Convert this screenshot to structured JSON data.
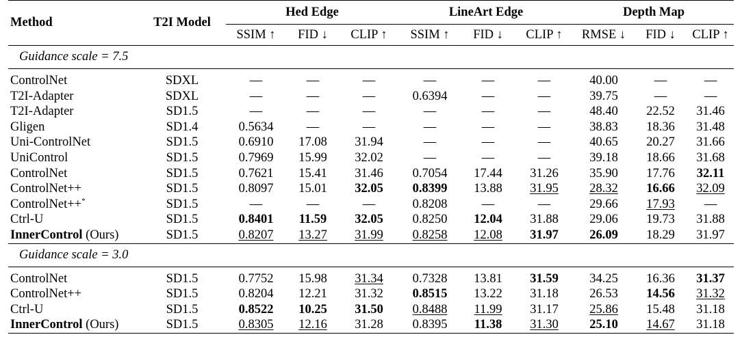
{
  "header": {
    "method": "Method",
    "t2i_model": "T2I Model",
    "groups": [
      "Hed Edge",
      "LineArt Edge",
      "Depth Map"
    ],
    "metrics": [
      "SSIM ↑",
      "FID ↓",
      "CLIP ↑",
      "SSIM ↑",
      "FID ↓",
      "CLIP ↑",
      "RMSE ↓",
      "FID ↓",
      "CLIP ↑"
    ]
  },
  "sections": [
    {
      "title": "Guidance scale = 7.5",
      "rows": [
        {
          "method": "ControlNet",
          "suffix": "",
          "model": "SDXL",
          "cells": [
            {
              "v": "—"
            },
            {
              "v": "—"
            },
            {
              "v": "—"
            },
            {
              "v": "—"
            },
            {
              "v": "—"
            },
            {
              "v": "—"
            },
            {
              "v": "40.00"
            },
            {
              "v": "—"
            },
            {
              "v": "—"
            }
          ]
        },
        {
          "method": "T2I-Adapter",
          "suffix": "",
          "model": "SDXL",
          "cells": [
            {
              "v": "—"
            },
            {
              "v": "—"
            },
            {
              "v": "—"
            },
            {
              "v": "0.6394"
            },
            {
              "v": "—"
            },
            {
              "v": "—"
            },
            {
              "v": "39.75"
            },
            {
              "v": "—"
            },
            {
              "v": "—"
            }
          ]
        },
        {
          "method": "T2I-Adapter",
          "suffix": "",
          "model": "SD1.5",
          "cells": [
            {
              "v": "—"
            },
            {
              "v": "—"
            },
            {
              "v": "—"
            },
            {
              "v": "—"
            },
            {
              "v": "—"
            },
            {
              "v": "—"
            },
            {
              "v": "48.40"
            },
            {
              "v": "22.52"
            },
            {
              "v": "31.46"
            }
          ]
        },
        {
          "method": "Gligen",
          "suffix": "",
          "model": "SD1.4",
          "cells": [
            {
              "v": "0.5634"
            },
            {
              "v": "—"
            },
            {
              "v": "—"
            },
            {
              "v": "—"
            },
            {
              "v": "—"
            },
            {
              "v": "—"
            },
            {
              "v": "38.83"
            },
            {
              "v": "18.36"
            },
            {
              "v": "31.48"
            }
          ]
        },
        {
          "method": "Uni-ControlNet",
          "suffix": "",
          "model": "SD1.5",
          "cells": [
            {
              "v": "0.6910"
            },
            {
              "v": "17.08"
            },
            {
              "v": "31.94"
            },
            {
              "v": "—"
            },
            {
              "v": "—"
            },
            {
              "v": "—"
            },
            {
              "v": "40.65"
            },
            {
              "v": "20.27"
            },
            {
              "v": "31.66"
            }
          ]
        },
        {
          "method": "UniControl",
          "suffix": "",
          "model": "SD1.5",
          "cells": [
            {
              "v": "0.7969"
            },
            {
              "v": "15.99"
            },
            {
              "v": "32.02"
            },
            {
              "v": "—"
            },
            {
              "v": "—"
            },
            {
              "v": "—"
            },
            {
              "v": "39.18"
            },
            {
              "v": "18.66"
            },
            {
              "v": "31.68"
            }
          ]
        },
        {
          "method": "ControlNet",
          "suffix": "",
          "model": "SD1.5",
          "cells": [
            {
              "v": "0.7621"
            },
            {
              "v": "15.41"
            },
            {
              "v": "31.46"
            },
            {
              "v": "0.7054"
            },
            {
              "v": "17.44"
            },
            {
              "v": "31.26"
            },
            {
              "v": "35.90"
            },
            {
              "v": "17.76"
            },
            {
              "v": "32.11",
              "s": "b"
            }
          ]
        },
        {
          "method": "ControlNet++",
          "suffix": "",
          "model": "SD1.5",
          "cells": [
            {
              "v": "0.8097"
            },
            {
              "v": "15.01"
            },
            {
              "v": "32.05",
              "s": "b"
            },
            {
              "v": "0.8399",
              "s": "b"
            },
            {
              "v": "13.88"
            },
            {
              "v": "31.95",
              "s": "u"
            },
            {
              "v": "28.32",
              "s": "u"
            },
            {
              "v": "16.66",
              "s": "b"
            },
            {
              "v": "32.09",
              "s": "u"
            }
          ]
        },
        {
          "method": "ControlNet++",
          "suffix": "*",
          "model": "SD1.5",
          "cells": [
            {
              "v": "—"
            },
            {
              "v": "—"
            },
            {
              "v": "—"
            },
            {
              "v": "0.8208"
            },
            {
              "v": "—"
            },
            {
              "v": "—"
            },
            {
              "v": "29.66"
            },
            {
              "v": "17.93",
              "s": "u"
            },
            {
              "v": "—"
            }
          ]
        },
        {
          "method": "Ctrl-U",
          "suffix": "",
          "model": "SD1.5",
          "cells": [
            {
              "v": "0.8401",
              "s": "b"
            },
            {
              "v": "11.59",
              "s": "b"
            },
            {
              "v": "32.05",
              "s": "b"
            },
            {
              "v": "0.8250"
            },
            {
              "v": "12.04",
              "s": "b"
            },
            {
              "v": "31.88"
            },
            {
              "v": "29.06"
            },
            {
              "v": "19.73"
            },
            {
              "v": "31.88"
            }
          ]
        },
        {
          "method": "InnerControl",
          "method_note": " (Ours)",
          "suffix": "",
          "model": "SD1.5",
          "bold_method": true,
          "cells": [
            {
              "v": "0.8207",
              "s": "u"
            },
            {
              "v": "13.27",
              "s": "u"
            },
            {
              "v": "31.99",
              "s": "u"
            },
            {
              "v": "0.8258",
              "s": "u"
            },
            {
              "v": "12.08",
              "s": "u"
            },
            {
              "v": "31.97",
              "s": "b"
            },
            {
              "v": "26.09",
              "s": "b"
            },
            {
              "v": "18.29"
            },
            {
              "v": "31.97"
            }
          ]
        }
      ]
    },
    {
      "title": "Guidance scale = 3.0",
      "rows": [
        {
          "method": "ControlNet",
          "suffix": "",
          "model": "SD1.5",
          "cells": [
            {
              "v": "0.7752"
            },
            {
              "v": "15.98"
            },
            {
              "v": "31.34",
              "s": "u"
            },
            {
              "v": "0.7328"
            },
            {
              "v": "13.81"
            },
            {
              "v": "31.59",
              "s": "b"
            },
            {
              "v": "34.25"
            },
            {
              "v": "16.36"
            },
            {
              "v": "31.37",
              "s": "b"
            }
          ]
        },
        {
          "method": "ControlNet++",
          "suffix": "",
          "model": "SD1.5",
          "cells": [
            {
              "v": "0.8204"
            },
            {
              "v": "12.21"
            },
            {
              "v": "31.32"
            },
            {
              "v": "0.8515",
              "s": "b"
            },
            {
              "v": "13.22"
            },
            {
              "v": "31.18"
            },
            {
              "v": "26.53"
            },
            {
              "v": "14.56",
              "s": "b"
            },
            {
              "v": "31.32",
              "s": "u"
            }
          ]
        },
        {
          "method": "Ctrl-U",
          "suffix": "",
          "model": "SD1.5",
          "cells": [
            {
              "v": "0.8522",
              "s": "b"
            },
            {
              "v": "10.25",
              "s": "b"
            },
            {
              "v": "31.50",
              "s": "b"
            },
            {
              "v": "0.8488",
              "s": "u"
            },
            {
              "v": "11.99",
              "s": "u"
            },
            {
              "v": "31.17"
            },
            {
              "v": "25.86",
              "s": "u"
            },
            {
              "v": "15.48"
            },
            {
              "v": "31.18"
            }
          ]
        },
        {
          "method": "InnerControl",
          "method_note": " (Ours)",
          "suffix": "",
          "model": "SD1.5",
          "bold_method": true,
          "cells": [
            {
              "v": "0.8305",
              "s": "u"
            },
            {
              "v": "12.16",
              "s": "u"
            },
            {
              "v": "31.28"
            },
            {
              "v": "0.8395"
            },
            {
              "v": "11.38",
              "s": "b"
            },
            {
              "v": "31.30",
              "s": "u"
            },
            {
              "v": "25.10",
              "s": "b"
            },
            {
              "v": "14.67",
              "s": "u"
            },
            {
              "v": "31.18"
            }
          ]
        }
      ]
    }
  ]
}
